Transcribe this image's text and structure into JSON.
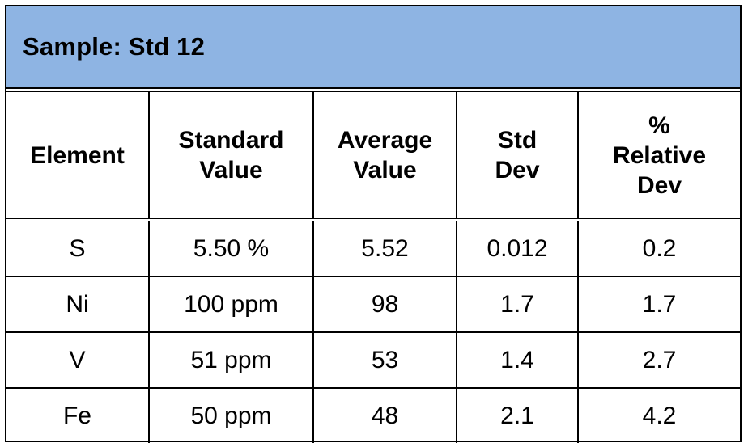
{
  "title": "Sample: Std 12",
  "table": {
    "headers": {
      "element": [
        "Element"
      ],
      "standard_value": [
        "Standard",
        "Value"
      ],
      "average_value": [
        "Average",
        "Value"
      ],
      "std_dev": [
        "Std",
        "Dev"
      ],
      "relative_dev": [
        "%",
        "Relative",
        "Dev"
      ]
    },
    "rows": [
      {
        "element": "S",
        "standard_value": "5.50 %",
        "average_value": "5.52",
        "std_dev": "0.012",
        "relative_dev": "0.2"
      },
      {
        "element": "Ni",
        "standard_value": "100 ppm",
        "average_value": "98",
        "std_dev": "1.7",
        "relative_dev": "1.7"
      },
      {
        "element": "V",
        "standard_value": "51 ppm",
        "average_value": "53",
        "std_dev": "1.4",
        "relative_dev": "2.7"
      },
      {
        "element": "Fe",
        "standard_value": "50 ppm",
        "average_value": "48",
        "std_dev": "2.1",
        "relative_dev": "4.2"
      }
    ]
  }
}
